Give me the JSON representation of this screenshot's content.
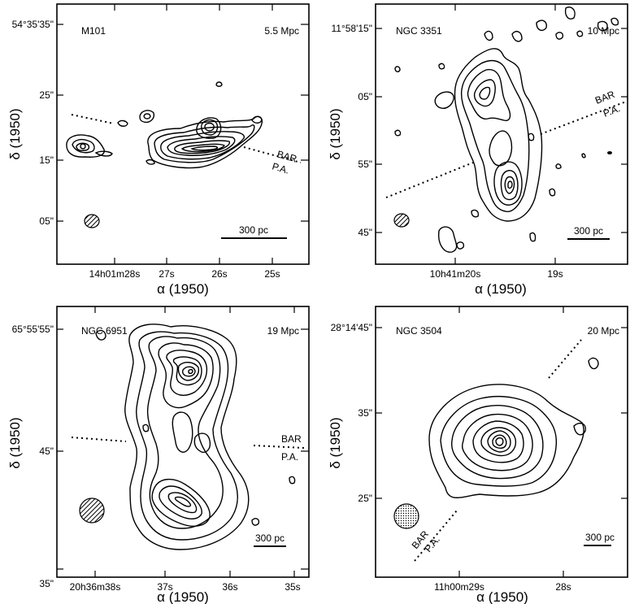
{
  "chart_data": [
    {
      "type": "contour",
      "name": "M101",
      "distance": "5.5 Mpc",
      "xlabel": "α (1950)",
      "ylabel": "δ (1950)",
      "x_ticks": [
        "14h01m28s",
        "27s",
        "26s",
        "25s"
      ],
      "y_ticks": [
        "54°35'35\"",
        "25\"",
        "15\"",
        "05\""
      ],
      "bar_label": "BAR",
      "pa_label": "P.A.",
      "scale_bar": "300 pc",
      "beam": "hatched-ellipse"
    },
    {
      "type": "contour",
      "name": "NGC 3351",
      "distance": "10 Mpc",
      "xlabel": "α (1950)",
      "ylabel": "δ (1950)",
      "x_ticks": [
        "10h41m20s",
        "19s"
      ],
      "y_ticks": [
        "11°58'15\"",
        "05\"",
        "55\"",
        "45\""
      ],
      "bar_label": "BAR",
      "pa_label": "P.A.",
      "scale_bar": "300 pc",
      "beam": "hatched-ellipse"
    },
    {
      "type": "contour",
      "name": "NGC 6951",
      "distance": "19 Mpc",
      "xlabel": "α (1950)",
      "ylabel": "δ (1950)",
      "x_ticks": [
        "20h36m38s",
        "37s",
        "36s",
        "35s"
      ],
      "y_ticks": [
        "65°55'55\"",
        "45\"",
        "35\""
      ],
      "bar_label": "BAR",
      "pa_label": "P.A.",
      "scale_bar": "300 pc",
      "beam": "hatched-ellipse"
    },
    {
      "type": "contour",
      "name": "NGC 3504",
      "distance": "20 Mpc",
      "xlabel": "α (1950)",
      "ylabel": "δ (1950)",
      "x_ticks": [
        "11h00m29s",
        "28s"
      ],
      "y_ticks": [
        "28°14'45\"",
        "35\"",
        "25\""
      ],
      "bar_label": "BAR",
      "pa_label": "P.A.",
      "scale_bar": "300 pc",
      "beam": "dotted-circle"
    }
  ]
}
